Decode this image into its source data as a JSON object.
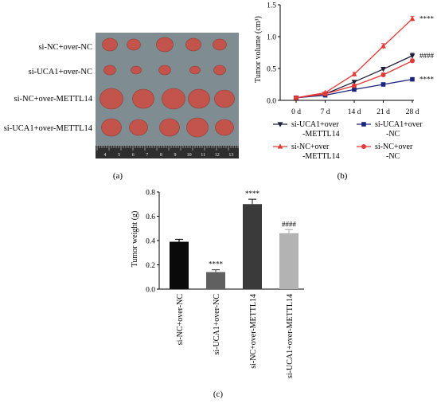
{
  "panels": {
    "a_label": "(a)",
    "b_label": "(b)",
    "c_label": "(c)"
  },
  "photo": {
    "row_labels": [
      "si-NC+over-NC",
      "si-UCA1+over-NC",
      "si-NC+over-METTL14",
      "si-UCA1+over-METTL14"
    ],
    "ruler_numbers": [
      "4",
      "5",
      "6",
      "7",
      "8",
      "9",
      "10",
      "11",
      "12",
      "13"
    ],
    "background_color": "#7f8c91",
    "tumor_color": "#c2544c"
  },
  "chart_data": [
    {
      "type": "line",
      "ylabel": "Tumor volume (cm³)",
      "x": [
        "0 d",
        "7 d",
        "14 d",
        "21 d",
        "28 d"
      ],
      "ylim": [
        0,
        1.5
      ],
      "yticks": [
        "0.0",
        "0.5",
        "1.0",
        "1.5"
      ],
      "series": [
        {
          "name": "si-UCA1+over\n-METTL14",
          "values": [
            0.04,
            0.1,
            0.29,
            0.49,
            0.7
          ],
          "errors": [
            0.01,
            0.01,
            0.02,
            0.03,
            0.04
          ],
          "color": "#1f1f3a",
          "marker": "triangle-down"
        },
        {
          "name": "si-UCA1+over\n-NC",
          "values": [
            0.04,
            0.08,
            0.17,
            0.25,
            0.33
          ],
          "errors": [
            0.01,
            0.01,
            0.01,
            0.02,
            0.02
          ],
          "color": "#1a237e",
          "marker": "square"
        },
        {
          "name": "si-NC+over\n-METTL14",
          "values": [
            0.04,
            0.12,
            0.41,
            0.85,
            1.28
          ],
          "errors": [
            0.01,
            0.01,
            0.03,
            0.04,
            0.04
          ],
          "color": "#e53935",
          "marker": "triangle-up"
        },
        {
          "name": "si-NC+over\n-NC",
          "values": [
            0.04,
            0.1,
            0.23,
            0.4,
            0.62
          ],
          "errors": [
            0.01,
            0.01,
            0.02,
            0.03,
            0.03
          ],
          "color": "#e53935",
          "marker": "circle"
        }
      ],
      "annotations": [
        {
          "text": "****",
          "at": 1.28
        },
        {
          "text": "####",
          "at": 0.7
        },
        {
          "text": "****",
          "at": 0.33
        }
      ],
      "legend": "bottom"
    },
    {
      "type": "bar",
      "ylabel": "Tumor weight (g)",
      "categories": [
        "si-NC+over-NC",
        "si-UCA1+over-NC",
        "si-NC+over-METTL14",
        "si-UCA1+over-METTL14"
      ],
      "values": [
        0.39,
        0.14,
        0.7,
        0.46
      ],
      "errors": [
        0.02,
        0.02,
        0.04,
        0.03
      ],
      "colors": [
        "#0a0a0a",
        "#606060",
        "#3a3a3a",
        "#b3b3b3"
      ],
      "labels": [
        "",
        "****",
        "****",
        "####"
      ],
      "ylim": [
        0,
        0.8
      ],
      "yticks": [
        "0.0",
        "0.2",
        "0.4",
        "0.6",
        "0.8"
      ]
    }
  ]
}
